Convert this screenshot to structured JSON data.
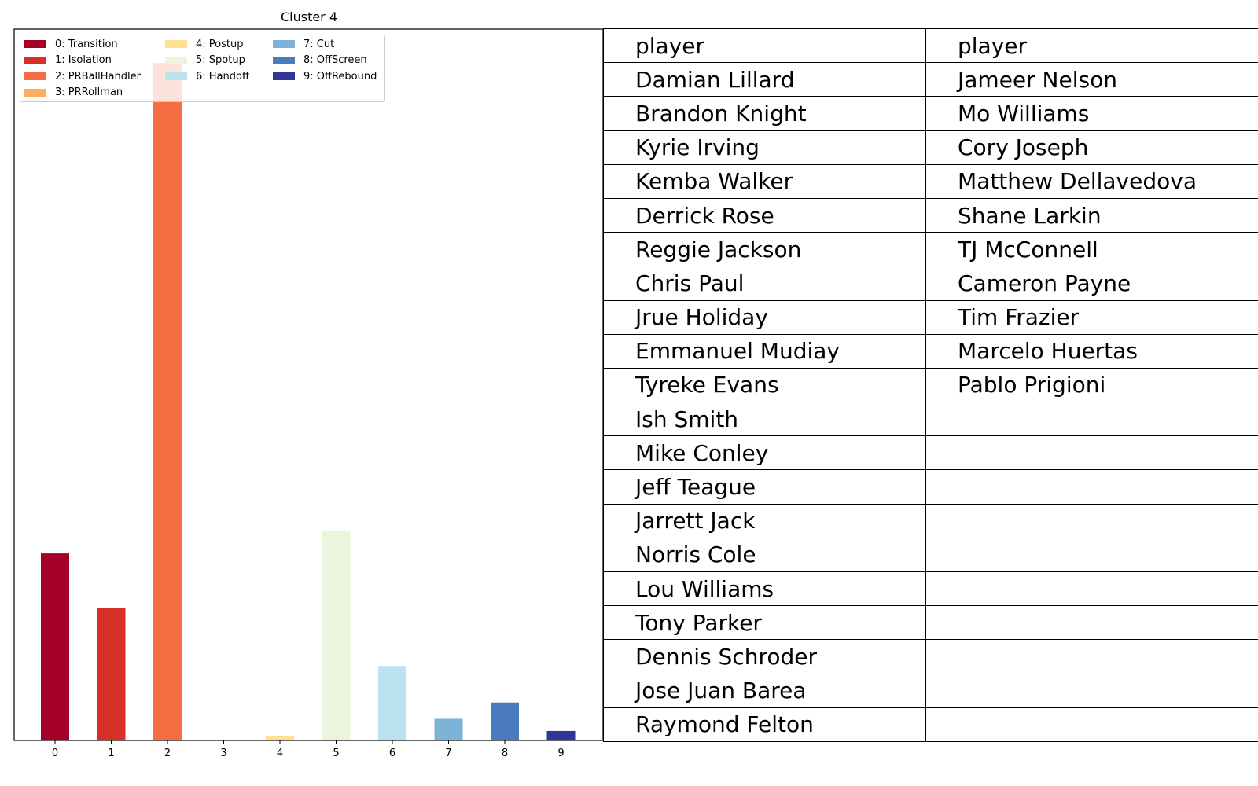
{
  "chart_data": {
    "type": "bar",
    "title": "Cluster 4",
    "categories": [
      "0",
      "1",
      "2",
      "3",
      "4",
      "5",
      "6",
      "7",
      "8",
      "9"
    ],
    "values": [
      0.138,
      0.098,
      0.5,
      0.0,
      0.003,
      0.155,
      0.055,
      0.016,
      0.028,
      0.007
    ],
    "ylim": [
      0,
      0.525
    ],
    "grid": false,
    "legend_position": "top-left",
    "legend": [
      {
        "label": "0: Transition",
        "color": "#a50026"
      },
      {
        "label": "1: Isolation",
        "color": "#d73027"
      },
      {
        "label": "2: PRBallHandler",
        "color": "#f46d43"
      },
      {
        "label": "3: PRRollman",
        "color": "#fdae61"
      },
      {
        "label": "4: Postup",
        "color": "#fee090"
      },
      {
        "label": "5: Spotup",
        "color": "#e9f5dc"
      },
      {
        "label": "6: Handoff",
        "color": "#bbe2ee"
      },
      {
        "label": "7: Cut",
        "color": "#7db3d6"
      },
      {
        "label": "8: OffScreen",
        "color": "#4a7bbc"
      },
      {
        "label": "9: OffRebound",
        "color": "#313695"
      }
    ]
  },
  "table": {
    "headers": [
      "player",
      "player"
    ],
    "rows": [
      [
        "Damian Lillard",
        "Jameer Nelson"
      ],
      [
        "Brandon Knight",
        "Mo Williams"
      ],
      [
        "Kyrie Irving",
        "Cory Joseph"
      ],
      [
        "Kemba Walker",
        "Matthew Dellavedova"
      ],
      [
        "Derrick Rose",
        "Shane Larkin"
      ],
      [
        "Reggie Jackson",
        "TJ McConnell"
      ],
      [
        "Chris Paul",
        "Cameron Payne"
      ],
      [
        "Jrue Holiday",
        "Tim Frazier"
      ],
      [
        "Emmanuel Mudiay",
        "Marcelo Huertas"
      ],
      [
        "Tyreke Evans",
        "Pablo Prigioni"
      ],
      [
        "Ish Smith",
        ""
      ],
      [
        "Mike Conley",
        ""
      ],
      [
        "Jeff Teague",
        ""
      ],
      [
        "Jarrett Jack",
        ""
      ],
      [
        "Norris Cole",
        ""
      ],
      [
        "Lou Williams",
        ""
      ],
      [
        "Tony Parker",
        ""
      ],
      [
        "Dennis Schroder",
        ""
      ],
      [
        "Jose Juan Barea",
        ""
      ],
      [
        "Raymond Felton",
        ""
      ]
    ]
  }
}
